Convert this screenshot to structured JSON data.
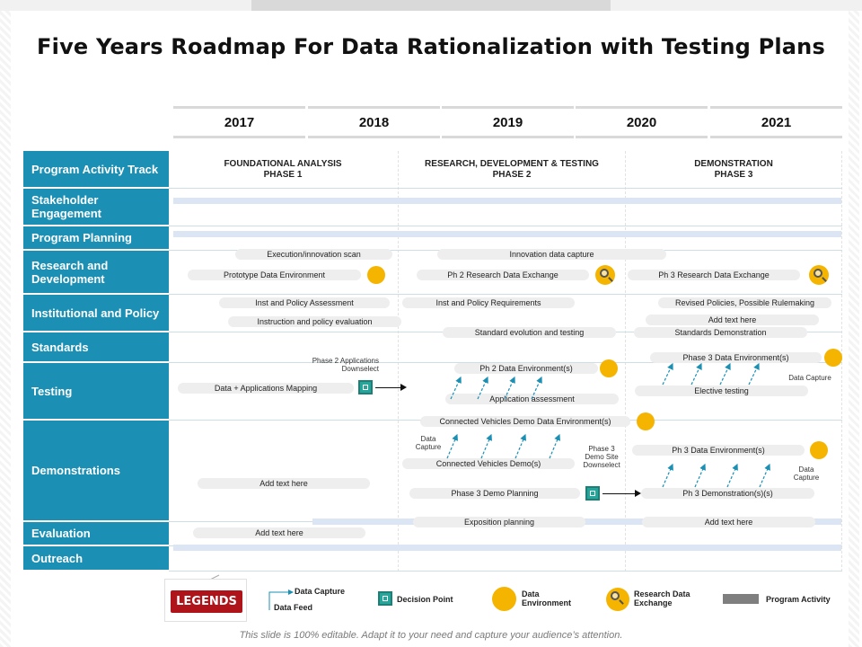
{
  "title": "Five Years Roadmap For Data Rationalization with Testing Plans",
  "years": [
    "2017",
    "2018",
    "2019",
    "2020",
    "2021"
  ],
  "phases": [
    {
      "line1": "FOUNDATIONAL ANALYSIS",
      "line2": "PHASE 1"
    },
    {
      "line1": "RESEARCH,  DEVELOPMENT & TESTING",
      "line2": "PHASE 2"
    },
    {
      "line1": "DEMONSTRATION",
      "line2": "PHASE 3"
    }
  ],
  "rows": [
    "Program Activity Track",
    "Stakeholder Engagement",
    "Program Planning",
    "Research and Development",
    "Institutional and Policy",
    "Standards",
    "Testing",
    "Demonstrations",
    "Evaluation",
    "Outreach"
  ],
  "activities": {
    "execution_scan": "Execution/innovation scan",
    "innovation_capture": "Innovation data capture",
    "prototype_env": "Prototype Data Environment",
    "ph2_exchange": "Ph 2 Research Data Exchange",
    "ph3_exchange": "Ph 3 Research Data Exchange",
    "inst_policy_assessment": "Inst and Policy Assessment",
    "inst_policy_requirements": "Inst and Policy Requirements",
    "revised_policies": "Revised Policies, Possible Rulemaking",
    "instruction_policy_eval": "Instruction and policy evaluation",
    "add_text_1": "Add text here",
    "standard_evolution": "Standard evolution  and testing",
    "standards_demo": "Standards Demonstration",
    "ph2_data_env": "Ph 2 Data Environment(s)",
    "ph3_data_env_a": "Phase 3 Data Environment(s)",
    "data_apps_mapping": "Data + Applications Mapping",
    "elective_testing": "Elective testing",
    "app_assessment": "Application assessment",
    "cv_demo_env": "Connected Vehicles Demo Data Environment(s)",
    "cv_demos": "Connected Vehicles Demo(s)",
    "ph3_data_env_b": "Ph 3 Data Environment(s)",
    "add_text_2": "Add text here",
    "ph3_demo_planning": "Phase 3 Demo Planning",
    "ph3_demonstrations": "Ph 3 Demonstration(s)(s)",
    "exposition_planning": "Exposition planning",
    "add_text_3": "Add text here",
    "add_text_4": "Add text here"
  },
  "notes": {
    "phase2_downselect_1": "Phase  2 Applications",
    "phase2_downselect_2": "Downselect",
    "data_capture": "Data Capture",
    "dc_left_1": "Data",
    "dc_left_2": "Capture",
    "phase3_site_1": "Phase 3",
    "phase3_site_2": "Demo Site",
    "phase3_site_3": "Downselect",
    "dc_right_1": "Data",
    "dc_right_2": "Capture"
  },
  "legend": {
    "button": "LEGENDS",
    "data_capture": "Data Capture",
    "data_feed": "Data Feed",
    "decision_point": "Decision Point",
    "data_env_1": "Data",
    "data_env_2": "Environment",
    "research_1": "Research Data",
    "research_2": "Exchange",
    "program_activity": "Program Activity"
  },
  "footer": "This slide is 100% editable. Adapt it to your need and capture your audience’s attention.",
  "colors": {
    "row_label_bg": "#1b8fb4",
    "milestone": "#f4b400",
    "decision": "#26a69a",
    "legend_button": "#b0141b",
    "band": "#dbe5f3"
  }
}
